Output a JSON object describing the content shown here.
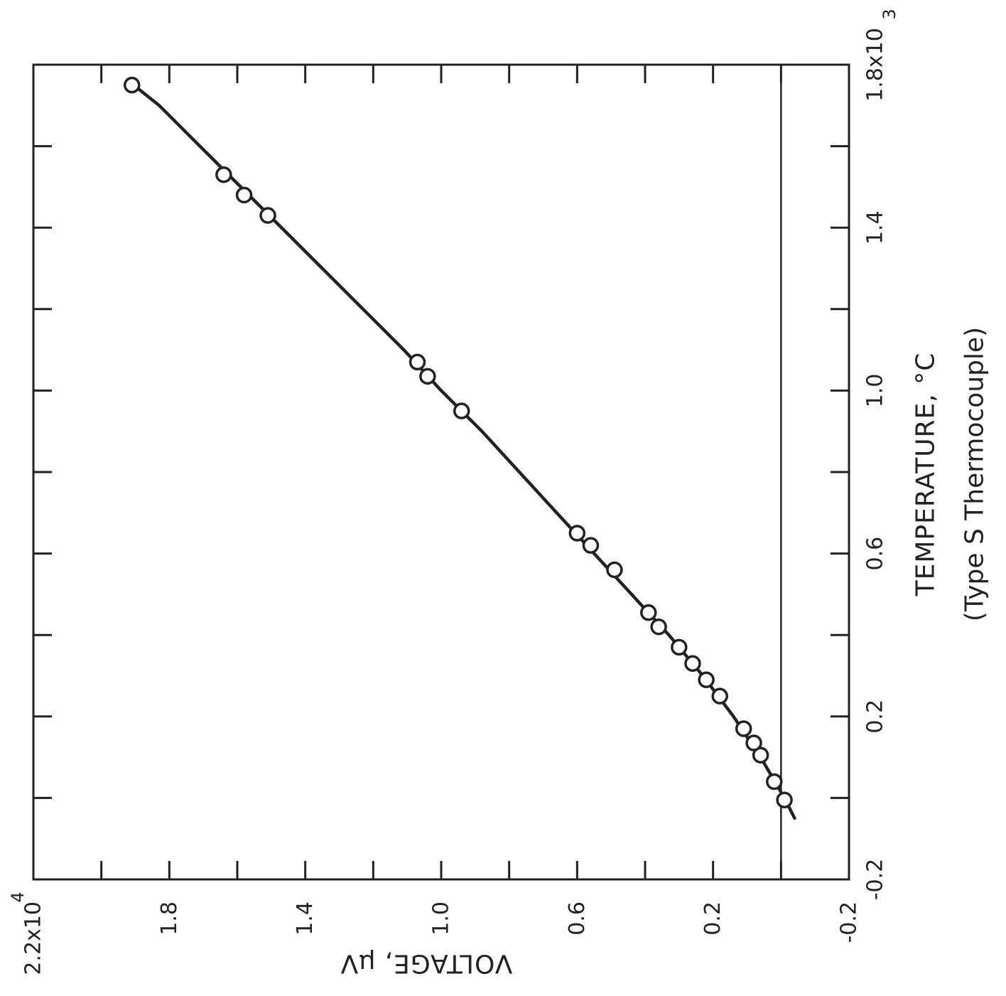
{
  "chart_data": {
    "type": "scatter",
    "orientation": "rotated-90-clockwise",
    "xlabel": "TEMPERATURE, °C",
    "xlabel_sub": "(Type S  Thermocouple)",
    "ylabel": "VOLTAGE, μV",
    "x_axis": {
      "range": [
        -0.2,
        1.8
      ],
      "multiplier_label": "x10",
      "multiplier_exp": "3",
      "tick_values": [
        -0.2,
        0.0,
        0.2,
        0.4,
        0.6,
        0.8,
        1.0,
        1.2,
        1.4,
        1.6,
        1.8
      ],
      "tick_labels": [
        {
          "value": -0.2,
          "text": "-0.2"
        },
        {
          "value": 0.2,
          "text": "0.2"
        },
        {
          "value": 0.6,
          "text": "0.6"
        },
        {
          "value": 1.0,
          "text": "1.0"
        },
        {
          "value": 1.4,
          "text": "1.4"
        },
        {
          "value": 1.8,
          "text": "1.8x10"
        }
      ]
    },
    "y_axis": {
      "range": [
        -0.2,
        2.2
      ],
      "multiplier_label": "x10",
      "multiplier_exp": "4",
      "tick_values": [
        -0.2,
        0.0,
        0.2,
        0.4,
        0.6,
        0.8,
        1.0,
        1.2,
        1.4,
        1.6,
        1.8,
        2.0,
        2.2
      ],
      "tick_labels": [
        {
          "value": -0.2,
          "text": "-0.2"
        },
        {
          "value": 0.2,
          "text": "0.2"
        },
        {
          "value": 0.6,
          "text": "0.6"
        },
        {
          "value": 1.0,
          "text": "1.0"
        },
        {
          "value": 1.4,
          "text": "1.4"
        },
        {
          "value": 1.8,
          "text": "1.8"
        },
        {
          "value": 2.2,
          "text": "2.2x10"
        }
      ]
    },
    "grid": false,
    "reference_line": {
      "y": 0
    },
    "series": [
      {
        "x": [
          -0.005,
          0.04,
          0.105,
          0.135,
          0.17,
          0.25,
          0.29,
          0.33,
          0.37,
          0.42,
          0.455,
          0.56,
          0.62,
          0.65,
          0.95,
          1.035,
          1.07,
          1.43,
          1.48,
          1.53,
          1.75
        ],
        "y": [
          -0.01,
          0.02,
          0.06,
          0.08,
          0.11,
          0.18,
          0.22,
          0.26,
          0.3,
          0.36,
          0.39,
          0.49,
          0.56,
          0.6,
          0.94,
          1.04,
          1.07,
          1.51,
          1.58,
          1.64,
          1.91
        ]
      }
    ],
    "fit_line": {
      "x": [
        -0.05,
        0.0,
        0.1,
        0.2,
        0.3,
        0.4,
        0.5,
        0.6,
        0.7,
        0.8,
        0.9,
        1.0,
        1.1,
        1.2,
        1.3,
        1.4,
        1.5,
        1.6,
        1.7,
        1.76
      ],
      "y": [
        -0.04,
        -0.01,
        0.06,
        0.14,
        0.23,
        0.33,
        0.44,
        0.55,
        0.66,
        0.77,
        0.88,
        1.0,
        1.11,
        1.23,
        1.35,
        1.47,
        1.59,
        1.71,
        1.83,
        1.92
      ]
    }
  }
}
